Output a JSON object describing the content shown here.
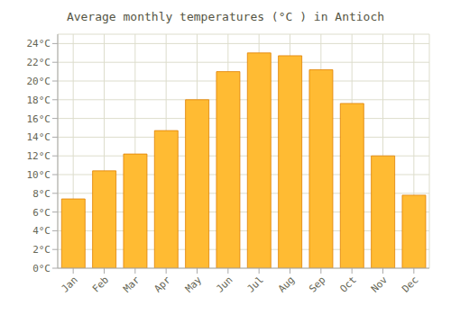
{
  "chart_data": {
    "type": "bar",
    "title": "Average monthly temperatures (°C ) in Antioch",
    "categories": [
      "Jan",
      "Feb",
      "Mar",
      "Apr",
      "May",
      "Jun",
      "Jul",
      "Aug",
      "Sep",
      "Oct",
      "Nov",
      "Dec"
    ],
    "values": [
      7.4,
      10.4,
      12.2,
      14.7,
      18.0,
      21.0,
      23.0,
      22.7,
      21.2,
      17.6,
      12.0,
      7.8
    ],
    "color": "#FFBB33",
    "ylim": [
      0,
      25
    ],
    "yticks": [
      {
        "value": 0,
        "label": "0°C"
      },
      {
        "value": 2,
        "label": "2°C"
      },
      {
        "value": 4,
        "label": "4°C"
      },
      {
        "value": 6,
        "label": "6°C"
      },
      {
        "value": 8,
        "label": "8°C"
      },
      {
        "value": 10,
        "label": "10°C"
      },
      {
        "value": 12,
        "label": "12°C"
      },
      {
        "value": 14,
        "label": "14°C"
      },
      {
        "value": 16,
        "label": "16°C"
      },
      {
        "value": 18,
        "label": "18°C"
      },
      {
        "value": 20,
        "label": "20°C"
      },
      {
        "value": 22,
        "label": "22°C"
      },
      {
        "value": 24,
        "label": "24°C"
      }
    ],
    "grid": true
  }
}
